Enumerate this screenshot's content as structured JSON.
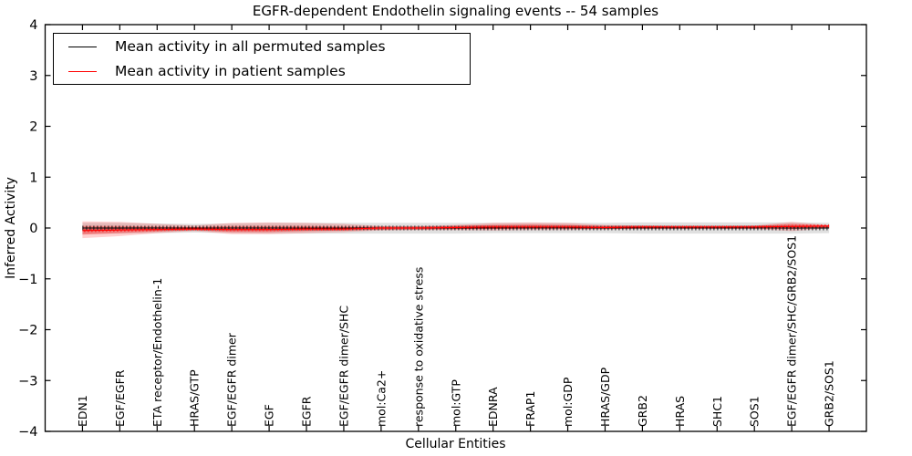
{
  "figure": {
    "background": "#ffffff",
    "axis_color": "#000000"
  },
  "chart_data": {
    "type": "line",
    "title": "EGFR-dependent Endothelin signaling events -- 54 samples",
    "xlabel": "Cellular Entities",
    "ylabel": "Inferred Activity",
    "ylim": [
      -4,
      4
    ],
    "yticks": [
      4,
      3,
      2,
      1,
      0,
      -1,
      -2,
      -3,
      -4
    ],
    "grid": false,
    "legend_position": "upper left",
    "categories": [
      "EDN1",
      "EGF/EGFR",
      "ETA receptor/Endothelin-1",
      "HRAS/GTP",
      "EGF/EGFR dimer",
      "EGF",
      "EGFR",
      "EGF/EGFR dimer/SHC",
      "mol:Ca2+",
      "response to oxidative stress",
      "mol:GTP",
      "EDNRA",
      "FRAP1",
      "mol:GDP",
      "HRAS/GDP",
      "GRB2",
      "HRAS",
      "SHC1",
      "SOS1",
      "EGF/EGFR dimer/SHC/GRB2/SOS1",
      "GRB2/SOS1"
    ],
    "legend": [
      {
        "label": "Mean activity in all permuted samples",
        "color": "#000000"
      },
      {
        "label": "Mean activity in patient samples",
        "color": "#ff0000"
      }
    ],
    "series": [
      {
        "name": "permuted-mean",
        "color": "#000000",
        "markers": true,
        "values": [
          0,
          0,
          0,
          0,
          0,
          0,
          0,
          0,
          0,
          0,
          0,
          0,
          0,
          0,
          0,
          0,
          0,
          0,
          0,
          0,
          0
        ]
      },
      {
        "name": "patient-mean",
        "color": "#ff0000",
        "markers": true,
        "values": [
          -0.05,
          -0.04,
          -0.03,
          -0.02,
          -0.03,
          -0.03,
          -0.02,
          -0.02,
          0,
          0,
          0.01,
          0.02,
          0.02,
          0.02,
          0.01,
          0.02,
          0.02,
          0.02,
          0.02,
          0.03,
          0.04
        ]
      }
    ],
    "bands": [
      {
        "name": "permuted-band",
        "color": "#999999",
        "alpha": 0.3,
        "upper": [
          0.1,
          0.1,
          0.09,
          0.08,
          0.09,
          0.1,
          0.1,
          0.1,
          0.1,
          0.1,
          0.1,
          0.1,
          0.1,
          0.1,
          0.1,
          0.11,
          0.11,
          0.11,
          0.11,
          0.11,
          0.1
        ],
        "lower": [
          -0.12,
          -0.11,
          -0.1,
          -0.09,
          -0.1,
          -0.11,
          -0.11,
          -0.11,
          -0.11,
          -0.11,
          -0.11,
          -0.1,
          -0.1,
          -0.1,
          -0.1,
          -0.11,
          -0.11,
          -0.11,
          -0.11,
          -0.11,
          -0.1
        ]
      },
      {
        "name": "patient-band-outer",
        "color": "#ff0000",
        "alpha": 0.18,
        "upper": [
          0.13,
          0.12,
          0.08,
          0.05,
          0.1,
          0.11,
          0.1,
          0.08,
          0.04,
          0.04,
          0.06,
          0.1,
          0.11,
          0.1,
          0.06,
          0.05,
          0.04,
          0.04,
          0.05,
          0.12,
          0.06
        ],
        "lower": [
          -0.2,
          -0.16,
          -0.1,
          -0.06,
          -0.12,
          -0.12,
          -0.1,
          -0.08,
          -0.05,
          -0.04,
          -0.04,
          -0.05,
          -0.04,
          -0.04,
          -0.03,
          -0.02,
          -0.02,
          -0.02,
          -0.02,
          -0.06,
          -0.01
        ]
      },
      {
        "name": "patient-band-inner",
        "color": "#ff0000",
        "alpha": 0.3,
        "upper": [
          0.04,
          0.04,
          0.03,
          0.02,
          0.04,
          0.04,
          0.04,
          0.03,
          0.02,
          0.02,
          0.04,
          0.06,
          0.07,
          0.06,
          0.04,
          0.04,
          0.03,
          0.03,
          0.04,
          0.08,
          0.05
        ],
        "lower": [
          -0.13,
          -0.1,
          -0.07,
          -0.04,
          -0.08,
          -0.08,
          -0.06,
          -0.05,
          -0.03,
          -0.02,
          -0.02,
          -0.02,
          -0.01,
          -0.01,
          -0.01,
          0,
          0,
          0,
          0,
          -0.02,
          0.01
        ]
      }
    ]
  }
}
